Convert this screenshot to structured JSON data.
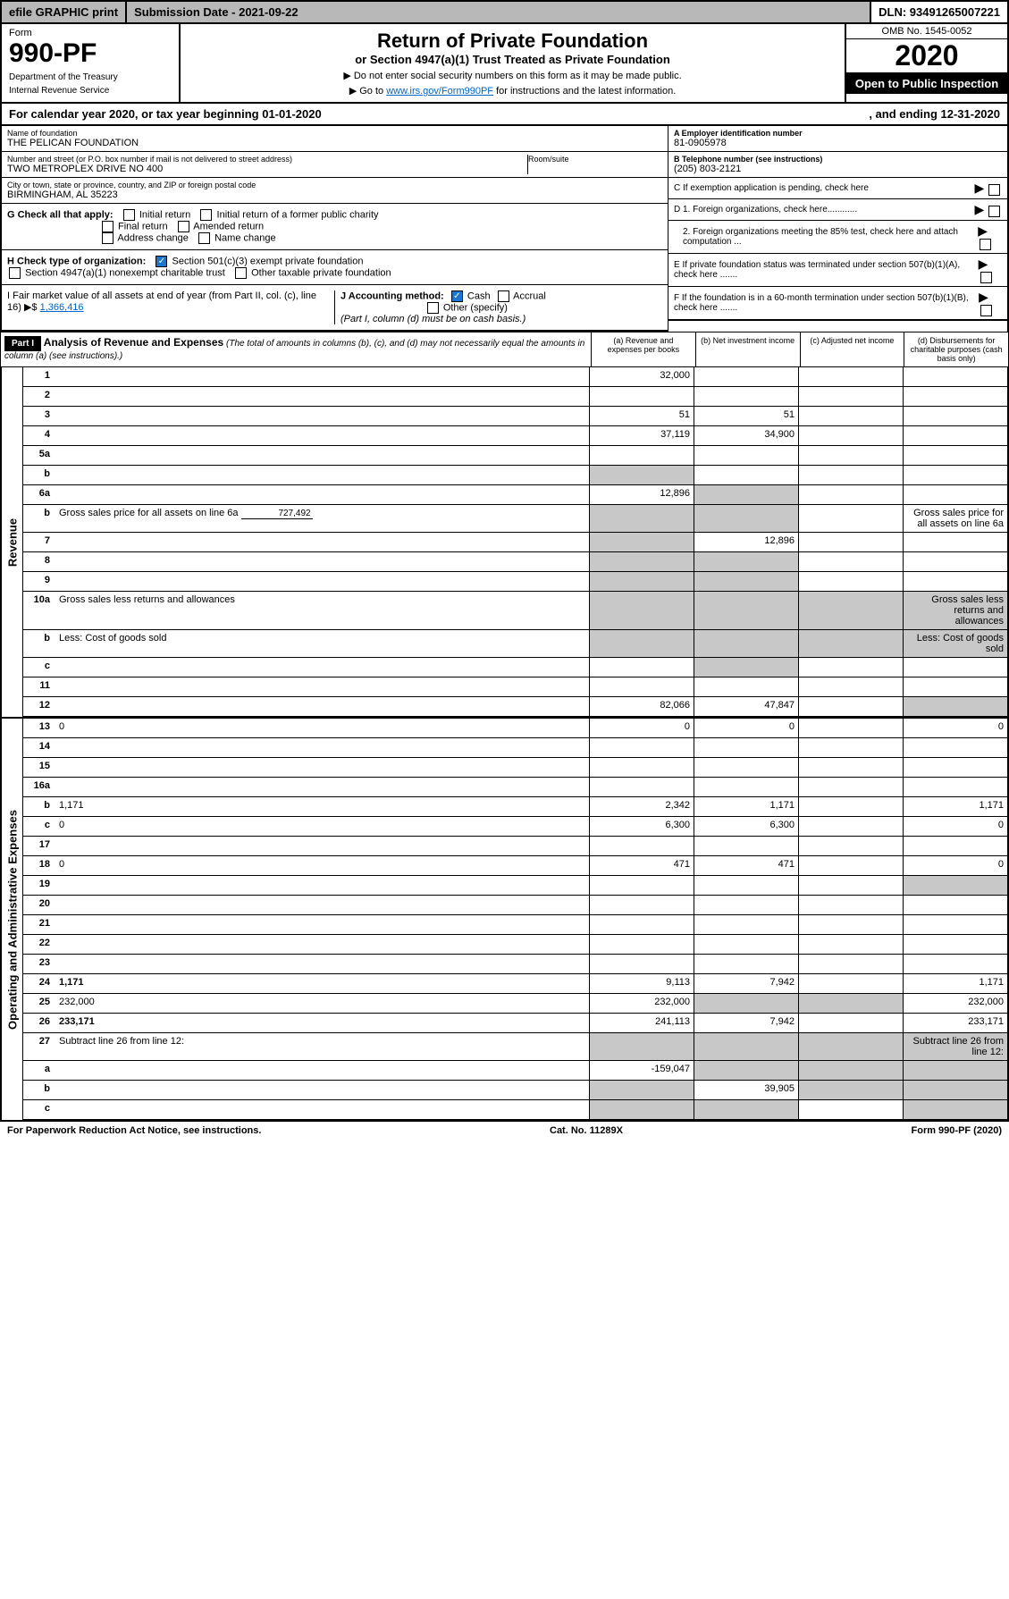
{
  "topbar": {
    "efile": "efile GRAPHIC print",
    "submission": "Submission Date - 2021-09-22",
    "dln": "DLN: 93491265007221"
  },
  "header": {
    "form_label": "Form",
    "form_number": "990-PF",
    "dept1": "Department of the Treasury",
    "dept2": "Internal Revenue Service",
    "title": "Return of Private Foundation",
    "subtitle": "or Section 4947(a)(1) Trust Treated as Private Foundation",
    "note1": "▶ Do not enter social security numbers on this form as it may be made public.",
    "note2_pre": "▶ Go to ",
    "note2_link": "www.irs.gov/Form990PF",
    "note2_post": " for instructions and the latest information.",
    "omb": "OMB No. 1545-0052",
    "year": "2020",
    "open": "Open to Public Inspection"
  },
  "calendar": {
    "left": "For calendar year 2020, or tax year beginning 01-01-2020",
    "right": ", and ending 12-31-2020"
  },
  "info": {
    "name_lbl": "Name of foundation",
    "name_val": "THE PELICAN FOUNDATION",
    "addr_lbl": "Number and street (or P.O. box number if mail is not delivered to street address)",
    "addr_val": "TWO METROPLEX DRIVE NO 400",
    "room_lbl": "Room/suite",
    "city_lbl": "City or town, state or province, country, and ZIP or foreign postal code",
    "city_val": "BIRMINGHAM, AL  35223",
    "ein_lbl": "A Employer identification number",
    "ein_val": "81-0905978",
    "tel_lbl": "B Telephone number (see instructions)",
    "tel_val": "(205) 803-2121",
    "c_lbl": "C If exemption application is pending, check here",
    "d1": "D 1. Foreign organizations, check here............",
    "d2": "2. Foreign organizations meeting the 85% test, check here and attach computation ...",
    "e_lbl": "E  If private foundation status was terminated under section 507(b)(1)(A), check here .......",
    "f_lbl": "F  If the foundation is in a 60-month termination under section 507(b)(1)(B), check here .......",
    "g_lbl": "G Check all that apply:",
    "g_opts": [
      "Initial return",
      "Initial return of a former public charity",
      "Final return",
      "Amended return",
      "Address change",
      "Name change"
    ],
    "h_lbl": "H Check type of organization:",
    "h_opt1": "Section 501(c)(3) exempt private foundation",
    "h_opt2": "Section 4947(a)(1) nonexempt charitable trust",
    "h_opt3": "Other taxable private foundation",
    "i_lbl": "I Fair market value of all assets at end of year (from Part II, col. (c), line 16) ▶$",
    "i_val": "1,366,416",
    "j_lbl": "J Accounting method:",
    "j_cash": "Cash",
    "j_accrual": "Accrual",
    "j_other": "Other (specify)",
    "j_note": "(Part I, column (d) must be on cash basis.)"
  },
  "part1": {
    "label": "Part I",
    "title": "Analysis of Revenue and Expenses",
    "title_note": "(The total of amounts in columns (b), (c), and (d) may not necessarily equal the amounts in column (a) (see instructions).)",
    "col_a": "(a)    Revenue and expenses per books",
    "col_b": "(b)   Net investment income",
    "col_c": "(c)   Adjusted net income",
    "col_d": "(d)   Disbursements for charitable purposes (cash basis only)"
  },
  "sections": {
    "revenue": "Revenue",
    "expenses": "Operating and Administrative Expenses"
  },
  "rows_rev": [
    {
      "n": "1",
      "d": "",
      "a": "32,000",
      "b": "",
      "c": ""
    },
    {
      "n": "2",
      "d": "",
      "a": "",
      "b": "",
      "c": "",
      "nob": true
    },
    {
      "n": "3",
      "d": "",
      "a": "51",
      "b": "51",
      "c": ""
    },
    {
      "n": "4",
      "d": "",
      "a": "37,119",
      "b": "34,900",
      "c": ""
    },
    {
      "n": "5a",
      "d": "",
      "a": "",
      "b": "",
      "c": ""
    },
    {
      "n": "b",
      "d": "",
      "a": "",
      "b": "",
      "c": "",
      "greyA": true
    },
    {
      "n": "6a",
      "d": "",
      "a": "12,896",
      "b": "",
      "c": "",
      "greyB": true
    },
    {
      "n": "b",
      "d": "Gross sales price for all assets on line 6a",
      "fill": "727,492",
      "greyA": true,
      "greyB": true
    },
    {
      "n": "7",
      "d": "",
      "a": "",
      "b": "12,896",
      "c": "",
      "greyA": true
    },
    {
      "n": "8",
      "d": "",
      "a": "",
      "b": "",
      "c": "",
      "greyA": true,
      "greyB": true
    },
    {
      "n": "9",
      "d": "",
      "a": "",
      "b": "",
      "c": "",
      "greyA": true,
      "greyB": true
    },
    {
      "n": "10a",
      "d": "Gross sales less returns and allowances",
      "greyA": true,
      "greyB": true,
      "greyC": true,
      "greyD": true
    },
    {
      "n": "b",
      "d": "Less: Cost of goods sold",
      "greyA": true,
      "greyB": true,
      "greyC": true,
      "greyD": true
    },
    {
      "n": "c",
      "d": "",
      "a": "",
      "b": "",
      "c": "",
      "greyB": true
    },
    {
      "n": "11",
      "d": "",
      "a": "",
      "b": "",
      "c": ""
    },
    {
      "n": "12",
      "d": "",
      "a": "82,066",
      "b": "47,847",
      "c": "",
      "bold": true,
      "greyD": true
    }
  ],
  "rows_exp": [
    {
      "n": "13",
      "d": "0",
      "a": "0",
      "b": "0",
      "c": ""
    },
    {
      "n": "14",
      "d": "",
      "a": "",
      "b": "",
      "c": ""
    },
    {
      "n": "15",
      "d": "",
      "a": "",
      "b": "",
      "c": ""
    },
    {
      "n": "16a",
      "d": "",
      "a": "",
      "b": "",
      "c": ""
    },
    {
      "n": "b",
      "d": "1,171",
      "a": "2,342",
      "b": "1,171",
      "c": ""
    },
    {
      "n": "c",
      "d": "0",
      "a": "6,300",
      "b": "6,300",
      "c": ""
    },
    {
      "n": "17",
      "d": "",
      "a": "",
      "b": "",
      "c": ""
    },
    {
      "n": "18",
      "d": "0",
      "a": "471",
      "b": "471",
      "c": ""
    },
    {
      "n": "19",
      "d": "",
      "a": "",
      "b": "",
      "c": "",
      "greyD": true
    },
    {
      "n": "20",
      "d": "",
      "a": "",
      "b": "",
      "c": ""
    },
    {
      "n": "21",
      "d": "",
      "a": "",
      "b": "",
      "c": ""
    },
    {
      "n": "22",
      "d": "",
      "a": "",
      "b": "",
      "c": ""
    },
    {
      "n": "23",
      "d": "",
      "a": "",
      "b": "",
      "c": ""
    },
    {
      "n": "24",
      "d": "1,171",
      "a": "9,113",
      "b": "7,942",
      "c": "",
      "bold": true
    },
    {
      "n": "25",
      "d": "232,000",
      "a": "232,000",
      "b": "",
      "c": "",
      "greyB": true,
      "greyC": true
    },
    {
      "n": "26",
      "d": "233,171",
      "a": "241,113",
      "b": "7,942",
      "c": "",
      "bold": true
    },
    {
      "n": "27",
      "d": "Subtract line 26 from line 12:",
      "greyA": true,
      "greyB": true,
      "greyC": true,
      "greyD": true
    },
    {
      "n": "a",
      "d": "",
      "a": "-159,047",
      "b": "",
      "c": "",
      "bold": true,
      "greyB": true,
      "greyC": true,
      "greyD": true
    },
    {
      "n": "b",
      "d": "",
      "a": "",
      "b": "39,905",
      "c": "",
      "bold": true,
      "greyA": true,
      "greyC": true,
      "greyD": true
    },
    {
      "n": "c",
      "d": "",
      "a": "",
      "b": "",
      "c": "",
      "bold": true,
      "greyA": true,
      "greyB": true,
      "greyD": true
    }
  ],
  "footer": {
    "left": "For Paperwork Reduction Act Notice, see instructions.",
    "mid": "Cat. No. 11289X",
    "right": "Form 990-PF (2020)"
  }
}
